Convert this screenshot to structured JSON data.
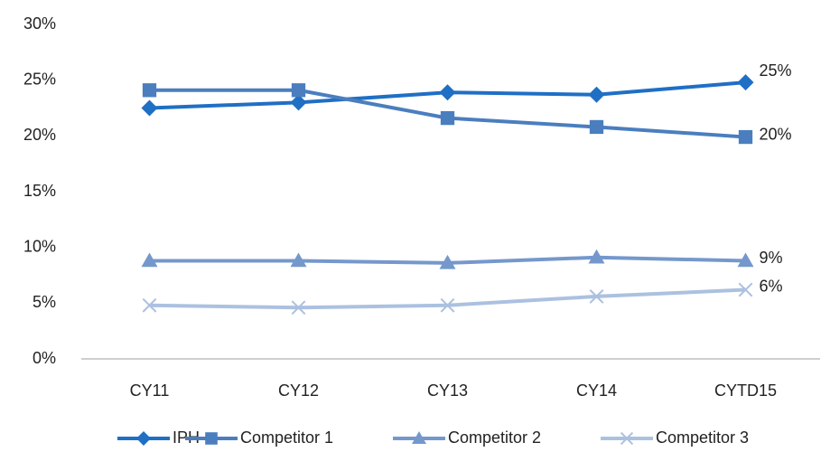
{
  "chart_data": {
    "type": "line",
    "categories": [
      "CY11",
      "CY12",
      "CY13",
      "CY14",
      "CYTD15"
    ],
    "series": [
      {
        "name": "IPH",
        "color": "#1f6fc5",
        "marker": "diamond",
        "values": [
          22.5,
          23.0,
          23.9,
          23.7,
          24.8
        ],
        "value_labels": [
          null,
          null,
          null,
          null,
          "25%"
        ]
      },
      {
        "name": "Competitor 1",
        "color": "#4a7ebf",
        "marker": "square",
        "values": [
          24.1,
          24.1,
          21.6,
          20.8,
          19.9
        ],
        "value_labels": [
          null,
          null,
          null,
          null,
          "20%"
        ]
      },
      {
        "name": "Competitor 2",
        "color": "#7598cc",
        "marker": "triangle",
        "values": [
          8.8,
          8.8,
          8.6,
          9.1,
          8.8
        ],
        "value_labels": [
          null,
          null,
          null,
          null,
          "9%"
        ]
      },
      {
        "name": "Competitor 3",
        "color": "#abc1e0",
        "marker": "x",
        "values": [
          4.8,
          4.6,
          4.8,
          5.6,
          6.2
        ],
        "value_labels": [
          null,
          null,
          null,
          null,
          "6%"
        ]
      }
    ],
    "ylim": [
      0,
      30
    ],
    "yticks": [
      {
        "value": 0,
        "label": "0%"
      },
      {
        "value": 5,
        "label": "5%"
      },
      {
        "value": 10,
        "label": "10%"
      },
      {
        "value": 15,
        "label": "15%"
      },
      {
        "value": 20,
        "label": "20%"
      },
      {
        "value": 25,
        "label": "25%"
      },
      {
        "value": 30,
        "label": "30%"
      }
    ],
    "legend": "bottom"
  }
}
